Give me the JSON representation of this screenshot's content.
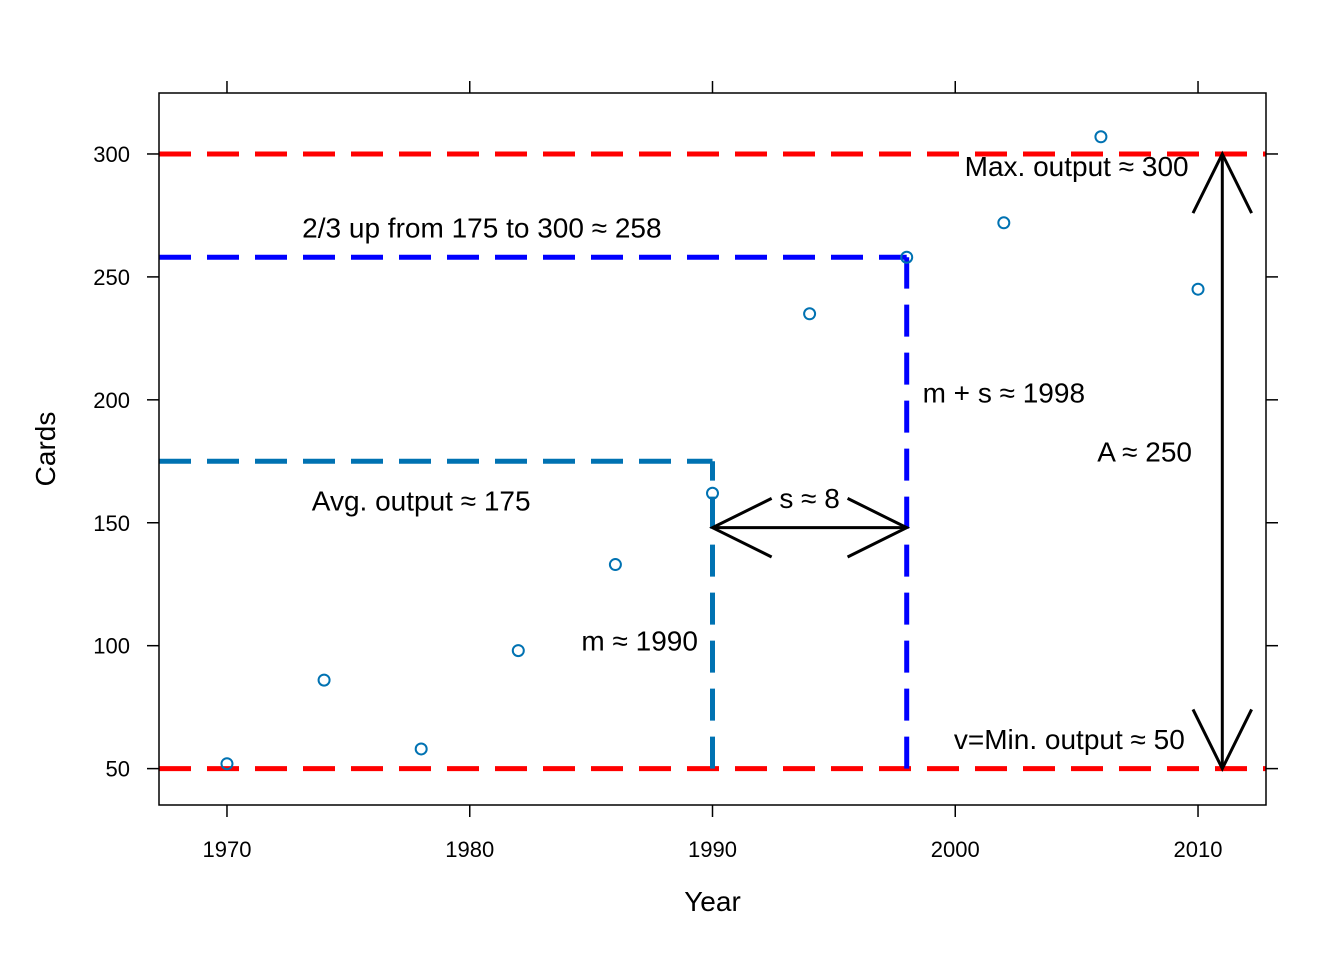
{
  "chart_data": {
    "type": "scatter",
    "xlabel": "Year",
    "ylabel": "Cards",
    "xlim": [
      1967.2,
      2012.8
    ],
    "ylim": [
      35.2,
      324.8
    ],
    "x_ticks": [
      1970,
      1980,
      1990,
      2000,
      2010
    ],
    "y_ticks": [
      50,
      100,
      150,
      200,
      250,
      300
    ],
    "grid": false,
    "series": [
      {
        "color": "#0072B2",
        "marker": "open-circle",
        "points": [
          {
            "x": 1970,
            "y": 52
          },
          {
            "x": 1974,
            "y": 86
          },
          {
            "x": 1978,
            "y": 58
          },
          {
            "x": 1982,
            "y": 98
          },
          {
            "x": 1986,
            "y": 133
          },
          {
            "x": 1990,
            "y": 162
          },
          {
            "x": 1994,
            "y": 235
          },
          {
            "x": 1998,
            "y": 258
          },
          {
            "x": 2002,
            "y": 272
          },
          {
            "x": 2006,
            "y": 307
          },
          {
            "x": 2010,
            "y": 245
          }
        ]
      }
    ],
    "reference_lines": [
      {
        "id": "max-output-line",
        "orientation": "h",
        "y": 300,
        "color": "#FF0000",
        "style": "dashed"
      },
      {
        "id": "min-output-line",
        "orientation": "h",
        "y": 50,
        "color": "#FF0000",
        "style": "dashed"
      },
      {
        "id": "two-thirds-line",
        "orientation": "h",
        "y": 258,
        "x_end": 1998,
        "color": "#0000FF",
        "style": "dashed"
      },
      {
        "id": "m-plus-s-vline",
        "orientation": "v",
        "x": 1998,
        "y_start": 50,
        "y_end": 258,
        "color": "#0000FF",
        "style": "dashed"
      },
      {
        "id": "avg-output-line",
        "orientation": "h",
        "y": 175,
        "x_end": 1990,
        "color": "#0072B2",
        "style": "dashed"
      },
      {
        "id": "m-vline",
        "orientation": "v",
        "x": 1990,
        "y_start": 50,
        "y_end": 175,
        "color": "#0072B2",
        "style": "dashed"
      }
    ],
    "arrows": [
      {
        "id": "s-arrow",
        "x1": 1990,
        "y1": 148,
        "x2": 1998,
        "y2": 148,
        "both_ends": true
      },
      {
        "id": "amplitude-arrow",
        "x1": 2011,
        "y1": 50,
        "x2": 2011,
        "y2": 300,
        "both_ends": true
      }
    ],
    "annotations": [
      {
        "id": "max-output-label",
        "text": "Max. output ≈  300",
        "x": 2005,
        "y": 291
      },
      {
        "id": "two-thirds-label",
        "text": "2/3 up from 175 to 300 ≈ 258",
        "x": 1980.5,
        "y": 266
      },
      {
        "id": "m-plus-s-label",
        "text": "m + s ≈ 1998",
        "x": 2002,
        "y": 199
      },
      {
        "id": "amplitude-label",
        "text": "A ≈ 250",
        "x": 2007.8,
        "y": 175
      },
      {
        "id": "avg-output-label",
        "text": "Avg. output  ≈ 175",
        "x": 1978,
        "y": 155
      },
      {
        "id": "s-label",
        "text": "s ≈ 8",
        "x": 1994,
        "y": 156
      },
      {
        "id": "m-label",
        "text": "m ≈ 1990",
        "x": 1987,
        "y": 98
      },
      {
        "id": "min-output-label",
        "text": "v=Min. output  ≈  50",
        "x": 2004.7,
        "y": 58
      }
    ]
  }
}
